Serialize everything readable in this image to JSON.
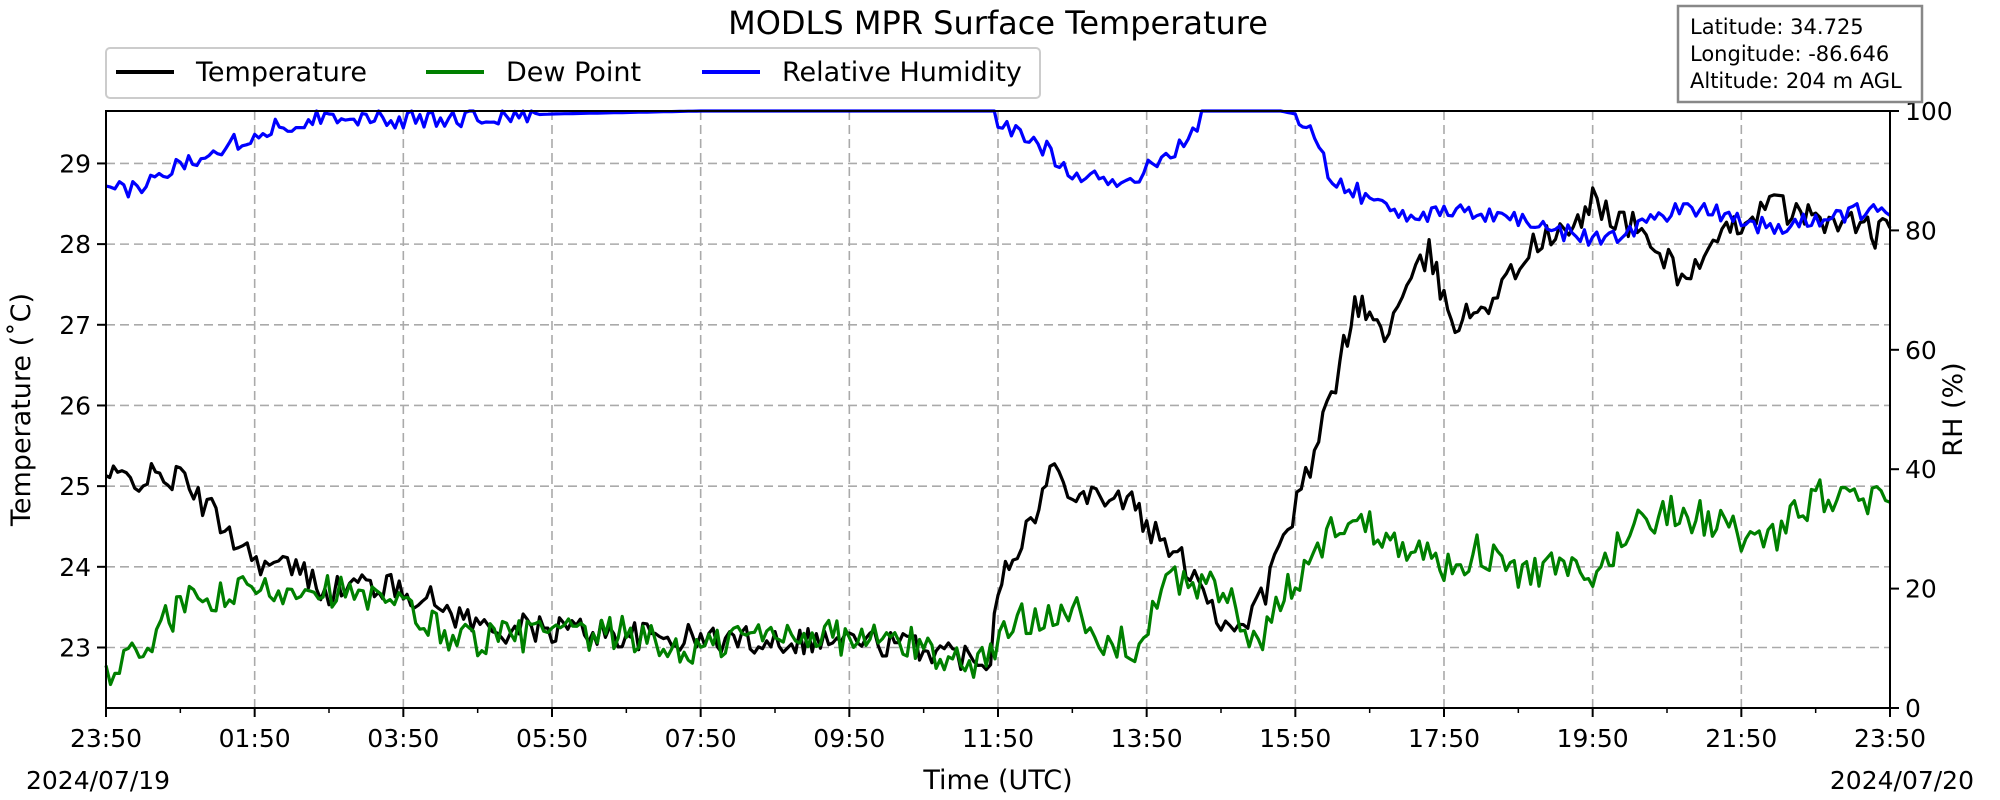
{
  "chart_data": {
    "type": "line",
    "title": "MODLS MPR Surface Temperature",
    "xlabel": "Time (UTC)",
    "ylabel_left": "Temperature ($^\\circ$C)",
    "ylabel_left_display": "Temperature (˚C)",
    "ylabel_right": "RH (%)",
    "x_tick_labels": [
      "23:50",
      "01:50",
      "03:50",
      "05:50",
      "07:50",
      "09:50",
      "11:50",
      "13:50",
      "15:50",
      "17:50",
      "19:50",
      "21:50",
      "23:50"
    ],
    "x_tick_hours": [
      0,
      2,
      4,
      6,
      8,
      10,
      12,
      14,
      16,
      18,
      20,
      22,
      24
    ],
    "x_range_hours": [
      0,
      24
    ],
    "start_date": "2024/07/19",
    "end_date": "2024/07/20",
    "ylim_left": [
      22.25,
      29.65
    ],
    "yticks_left": [
      23,
      24,
      25,
      26,
      27,
      28,
      29
    ],
    "ylim_right": [
      0,
      100
    ],
    "yticks_right": [
      0,
      20,
      40,
      60,
      80,
      100
    ],
    "grid": true,
    "legend_position": "top-left",
    "station_info": {
      "latitude": "Latitude: 34.725",
      "longitude": "Longitude: -86.646",
      "altitude": "Altitude: 204 m AGL"
    },
    "series": [
      {
        "name": "Temperature",
        "axis": "left",
        "color": "#000000",
        "x_hours": [
          0,
          0.1,
          0.5,
          1.0,
          1.3,
          1.6,
          1.9,
          2.2,
          2.5,
          3.0,
          3.5,
          4.0,
          4.2,
          5.2,
          5.5,
          6.0,
          6.1,
          7.0,
          8.0,
          9.0,
          10.0,
          11.0,
          11.5,
          11.9,
          12.0,
          12.2,
          12.5,
          12.7,
          13.0,
          13.2,
          13.5,
          13.8,
          14.0,
          14.3,
          14.7,
          15.0,
          15.3,
          15.6,
          15.9,
          16.2,
          16.6,
          16.8,
          17.0,
          17.2,
          17.5,
          17.8,
          18.0,
          18.2,
          18.4,
          18.6,
          18.9,
          19.2,
          19.5,
          19.8,
          20.0,
          20.3,
          20.6,
          20.9,
          21.2,
          21.5,
          21.8,
          22.0,
          22.2,
          22.5,
          22.8,
          23.0,
          23.3,
          23.6,
          23.8,
          24.0
        ],
        "values": [
          25.1,
          25.1,
          25.1,
          25.1,
          24.8,
          24.5,
          24.2,
          24.0,
          24.0,
          23.7,
          23.8,
          23.7,
          23.65,
          23.2,
          23.25,
          23.2,
          23.25,
          23.15,
          23.1,
          23.1,
          23.1,
          23.0,
          22.9,
          22.9,
          23.8,
          24.2,
          24.6,
          25.2,
          25.0,
          24.9,
          24.9,
          24.8,
          24.5,
          24.2,
          23.9,
          23.3,
          23.3,
          23.7,
          24.5,
          25.2,
          26.5,
          27.3,
          27.1,
          26.9,
          27.4,
          27.9,
          27.3,
          27.0,
          27.2,
          27.3,
          27.6,
          28.0,
          28.1,
          28.2,
          28.6,
          28.3,
          28.2,
          27.9,
          27.6,
          27.8,
          28.1,
          28.3,
          28.4,
          28.5,
          28.3,
          28.4,
          28.2,
          28.3,
          28.1,
          28.2
        ]
      },
      {
        "name": "Dew Point",
        "axis": "left",
        "color": "#008000",
        "x_hours": [
          0,
          0.3,
          0.5,
          0.8,
          1.0,
          1.3,
          1.6,
          1.9,
          2.2,
          2.5,
          2.8,
          3.1,
          3.4,
          3.7,
          4.0,
          4.5,
          5.0,
          5.5,
          6.0,
          6.5,
          7.0,
          7.5,
          8.0,
          8.5,
          9.0,
          9.5,
          10.0,
          10.5,
          11.0,
          11.5,
          11.9,
          12.2,
          12.5,
          12.8,
          13.0,
          13.3,
          13.6,
          13.9,
          14.2,
          14.5,
          14.8,
          15.2,
          15.5,
          15.8,
          16.0,
          16.3,
          16.6,
          17.0,
          17.5,
          18.0,
          18.5,
          19.0,
          19.5,
          20.0,
          20.5,
          21.0,
          21.5,
          22.0,
          22.3,
          22.6,
          23.0,
          23.4,
          23.7,
          24.0
        ],
        "values": [
          22.7,
          22.8,
          23.0,
          23.3,
          23.5,
          23.6,
          23.6,
          23.7,
          23.7,
          23.75,
          23.8,
          23.7,
          23.6,
          23.55,
          23.5,
          23.2,
          23.1,
          23.15,
          23.2,
          23.1,
          23.2,
          23.0,
          22.95,
          23.15,
          23.15,
          23.2,
          23.1,
          23.1,
          23.0,
          22.8,
          22.9,
          23.3,
          23.4,
          23.5,
          23.5,
          23.0,
          23.05,
          23.0,
          23.7,
          23.85,
          23.8,
          23.5,
          22.9,
          23.6,
          23.8,
          24.2,
          24.6,
          24.5,
          24.3,
          24.0,
          24.2,
          23.9,
          24.0,
          23.8,
          24.5,
          24.7,
          24.6,
          24.4,
          24.2,
          24.5,
          24.9,
          24.8,
          24.8,
          24.8
        ]
      },
      {
        "name": "Relative Humidity",
        "axis": "right",
        "color": "#0000ff",
        "x_hours": [
          0,
          0.3,
          0.6,
          1.0,
          1.5,
          2.0,
          2.5,
          3.0,
          3.5,
          4.0,
          6.0,
          8.0,
          10.0,
          11.5,
          11.9,
          12.0,
          12.3,
          12.6,
          13.0,
          13.3,
          13.6,
          13.9,
          14.2,
          14.5,
          14.8,
          15.0,
          15.5,
          15.8,
          16.0,
          16.2,
          16.5,
          17.0,
          17.5,
          18.0,
          18.5,
          19.0,
          19.5,
          20.0,
          20.5,
          21.0,
          21.5,
          22.0,
          22.5,
          23.0,
          23.5,
          24.0
        ],
        "values": [
          86,
          87,
          88,
          91,
          94,
          96,
          98,
          99.5,
          99,
          98.5,
          99.5,
          100,
          100,
          100,
          100,
          98,
          96,
          94,
          90,
          89,
          88,
          89,
          92,
          95,
          100,
          100,
          100,
          100,
          99.5,
          96,
          89,
          85,
          83,
          82.5,
          83,
          82,
          80,
          78.5,
          80,
          83,
          84,
          82,
          80,
          82,
          83,
          82.5
        ]
      }
    ]
  }
}
